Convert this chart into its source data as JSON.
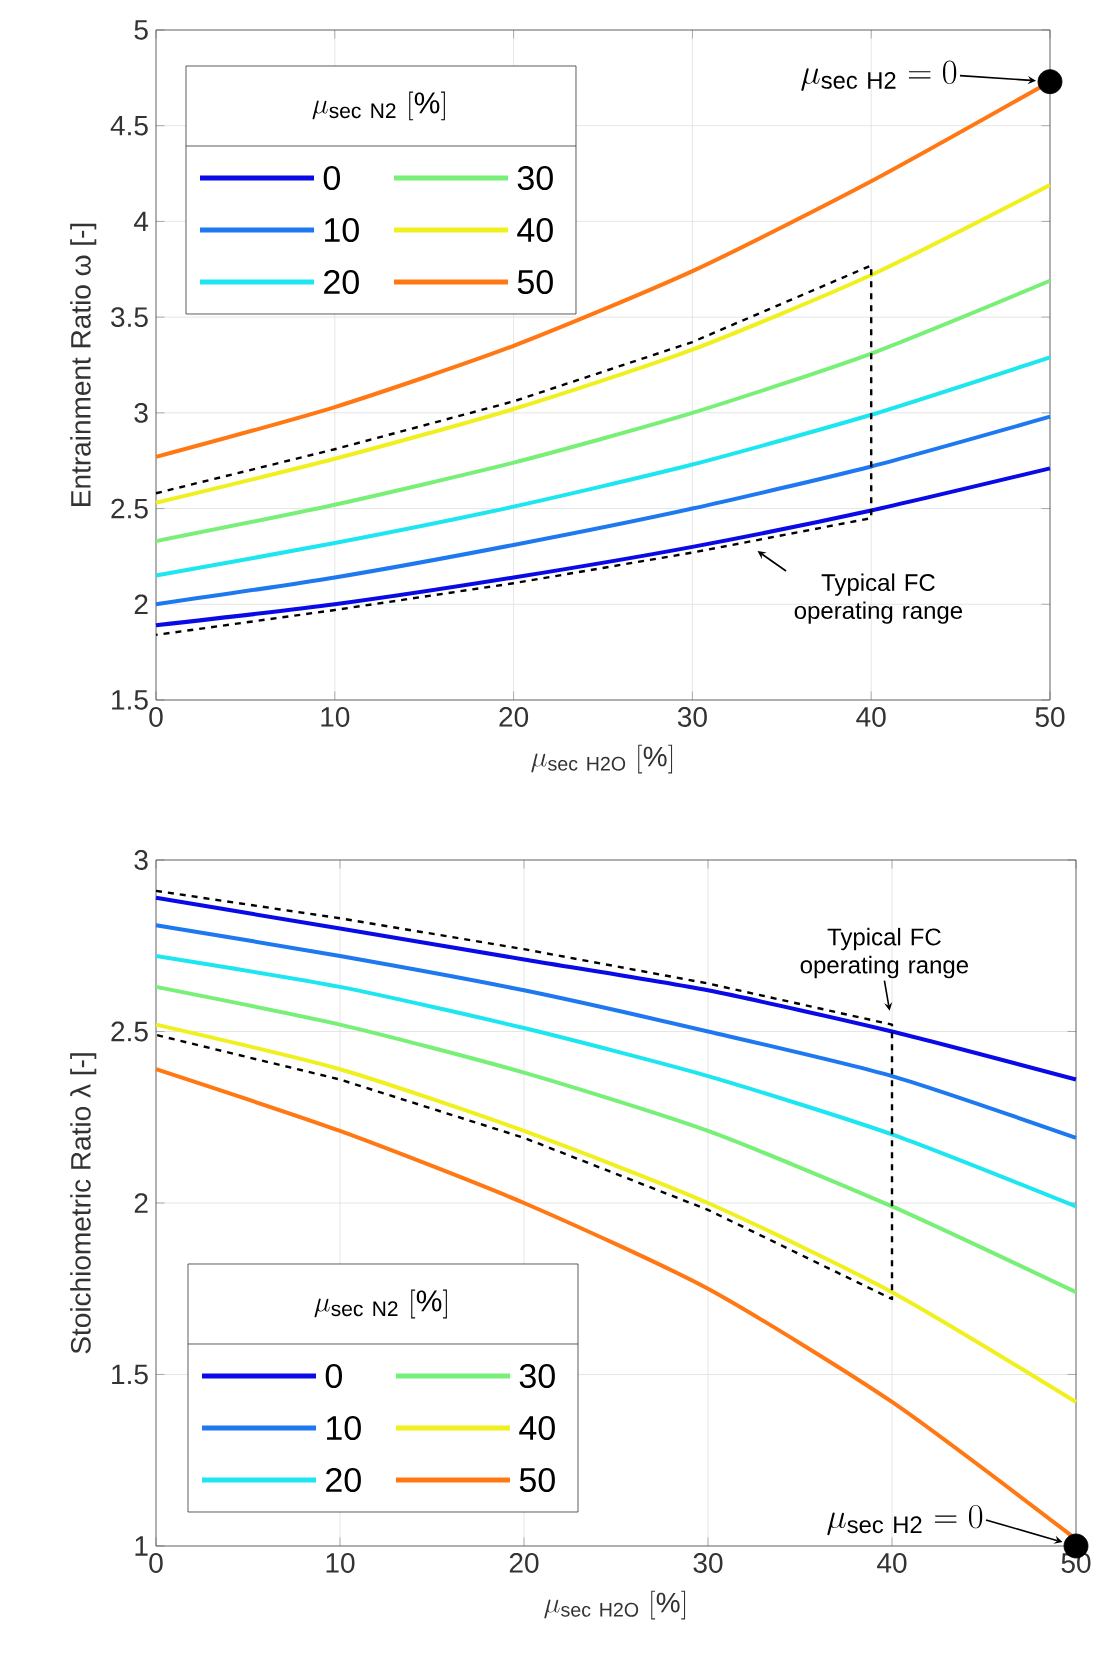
{
  "chart_data": [
    {
      "type": "line",
      "xlabel": "\\mu_{\\mathrm{sec\\ H2O}}\\ [\\%]",
      "ylabel": "Entrainment Ratio ω [-]",
      "legend_title": "\\mu_{\\mathrm{sec\\ N2}}\\ [\\%]",
      "x": [
        0,
        10,
        20,
        30,
        40,
        50
      ],
      "xlim": [
        0,
        50
      ],
      "xticks": [
        0,
        10,
        20,
        30,
        40,
        50
      ],
      "ylim": [
        1.5,
        5
      ],
      "yticks": [
        1.5,
        2,
        2.5,
        3,
        3.5,
        4,
        4.5,
        5
      ],
      "grid": true,
      "legend": "top left",
      "marker": "none",
      "line_style": "solid",
      "series": [
        {
          "name": "0",
          "color": "#0a0ae6",
          "values": [
            1.89,
            2.0,
            2.14,
            2.3,
            2.49,
            2.71
          ]
        },
        {
          "name": "10",
          "color": "#1e78f0",
          "values": [
            2.0,
            2.14,
            2.31,
            2.5,
            2.72,
            2.98
          ]
        },
        {
          "name": "20",
          "color": "#1ee6f0",
          "values": [
            2.15,
            2.32,
            2.51,
            2.73,
            2.99,
            3.29
          ]
        },
        {
          "name": "30",
          "color": "#78f078",
          "values": [
            2.33,
            2.52,
            2.74,
            3.0,
            3.31,
            3.69
          ]
        },
        {
          "name": "40",
          "color": "#f0f01e",
          "values": [
            2.53,
            2.76,
            3.02,
            3.33,
            3.72,
            4.19
          ]
        },
        {
          "name": "50",
          "color": "#ff7814",
          "values": [
            2.77,
            3.03,
            3.35,
            3.74,
            4.21,
            4.73
          ]
        },
        {
          "type": "line",
          "color": "#000000",
          "line_style": "dashed",
          "x": [
            0,
            10,
            20,
            30,
            40,
            40,
            30,
            20,
            10,
            0
          ],
          "values": [
            2.58,
            2.81,
            3.06,
            3.37,
            3.77,
            2.45,
            2.27,
            2.11,
            1.97,
            1.84
          ]
        },
        {
          "type": "scatter",
          "color": "#000000",
          "marker": "circle",
          "x": [
            50
          ],
          "values": [
            4.73
          ]
        }
      ],
      "annotations": [
        "\\mu_{\\mathrm{sec\\ H2}} = 0",
        {
          "text": "Typical FC operating range",
          "x": 33,
          "y": 2.32
        }
      ]
    },
    {
      "type": "line",
      "xlabel": "\\mu_{\\mathrm{sec\\ H2O}}\\ [\\%]",
      "ylabel": "Stoichiometric Ratio λ [-]",
      "legend_title": "\\mu_{\\mathrm{sec\\ N2}}\\ [\\%]",
      "x": [
        0,
        10,
        20,
        30,
        40,
        50
      ],
      "xlim": [
        0,
        50
      ],
      "xticks": [
        0,
        10,
        20,
        30,
        40,
        50
      ],
      "ylim": [
        1,
        3
      ],
      "yticks": [
        1,
        1.5,
        2,
        2.5,
        3
      ],
      "grid": true,
      "legend": "bottom left",
      "marker": "none",
      "line_style": "solid",
      "series": [
        {
          "name": "0",
          "color": "#0a0ae6",
          "values": [
            2.89,
            2.8,
            2.71,
            2.62,
            2.5,
            2.36
          ]
        },
        {
          "name": "10",
          "color": "#1e78f0",
          "values": [
            2.81,
            2.72,
            2.62,
            2.5,
            2.37,
            2.19
          ]
        },
        {
          "name": "20",
          "color": "#1ee6f0",
          "values": [
            2.72,
            2.63,
            2.51,
            2.37,
            2.2,
            1.99
          ]
        },
        {
          "name": "30",
          "color": "#78f078",
          "values": [
            2.63,
            2.52,
            2.38,
            2.21,
            1.99,
            1.74
          ]
        },
        {
          "name": "40",
          "color": "#f0f01e",
          "values": [
            2.52,
            2.39,
            2.21,
            2.0,
            1.74,
            1.42
          ]
        },
        {
          "name": "50",
          "color": "#ff7814",
          "values": [
            2.39,
            2.21,
            2.0,
            1.75,
            1.42,
            1.02
          ]
        },
        {
          "type": "line",
          "color": "#000000",
          "line_style": "dashed",
          "x": [
            0,
            10,
            20,
            30,
            40,
            40,
            30,
            20,
            10,
            0
          ],
          "values": [
            2.91,
            2.83,
            2.74,
            2.64,
            2.52,
            1.72,
            1.98,
            2.19,
            2.36,
            2.49
          ]
        },
        {
          "type": "scatter",
          "color": "#000000",
          "marker": "circle",
          "x": [
            50
          ],
          "values": [
            1.0
          ]
        }
      ],
      "annotations": [
        {
          "text": "Typical FC operating range",
          "x": 40,
          "y": 2.52
        },
        "\\mu_{\\mathrm{sec\\ H2}} = 0"
      ]
    }
  ]
}
